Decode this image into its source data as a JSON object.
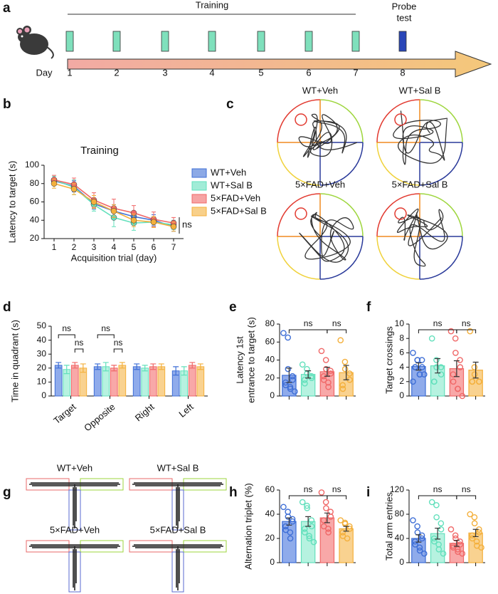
{
  "panel_a": {
    "label": "a",
    "title": "Training",
    "probe": [
      "Probe",
      "test"
    ],
    "day_label": "Day",
    "days": [
      1,
      2,
      3,
      4,
      5,
      6,
      7,
      8
    ]
  },
  "panel_c": {
    "label": "c",
    "titles": [
      "WT+Veh",
      "WT+Sal B",
      "5×FAD+Veh",
      "5×FAD+Sal B"
    ]
  },
  "panel_g": {
    "label": "g",
    "titles": [
      "WT+Veh",
      "WT+Sal B",
      "5×FAD+Veh",
      "5×FAD+Sal B"
    ]
  },
  "chart_data": [
    {
      "type": "line",
      "label": "b",
      "title": "Training",
      "xlabel": "Acquisition trial (day)",
      "ylabel": "Latency to target (s)",
      "x": [
        1,
        2,
        3,
        4,
        5,
        6,
        7
      ],
      "xlim": [
        0.5,
        7.5
      ],
      "xticks": [
        1,
        2,
        3,
        4,
        5,
        6,
        7
      ],
      "ylim": [
        20,
        100
      ],
      "yticks": [
        20,
        40,
        60,
        80,
        100
      ],
      "legend": "right",
      "annotation": "ns",
      "series": [
        {
          "name": "WT+Veh",
          "color": "#3f6fd6",
          "values": [
            83,
            77,
            58,
            50,
            44,
            40,
            33
          ],
          "errors": [
            5,
            6,
            6,
            7,
            6,
            6,
            5
          ]
        },
        {
          "name": "WT+Sal B",
          "color": "#63e0bc",
          "values": [
            84,
            76,
            57,
            43,
            37,
            38,
            35
          ],
          "errors": [
            4,
            8,
            7,
            10,
            8,
            6,
            5
          ]
        },
        {
          "name": "5×FAD+Veh",
          "color": "#f06868",
          "values": [
            84,
            79,
            62,
            53,
            48,
            41,
            37
          ],
          "errors": [
            5,
            7,
            8,
            10,
            8,
            8,
            6
          ]
        },
        {
          "name": "5×FAD+Sal B",
          "color": "#f4b03c",
          "values": [
            80,
            74,
            60,
            50,
            40,
            38,
            33
          ],
          "errors": [
            5,
            6,
            7,
            7,
            7,
            6,
            5
          ]
        }
      ]
    },
    {
      "type": "bar",
      "label": "d",
      "ylabel": "Time in quadrant (s)",
      "categories": [
        "Target",
        "Opposite",
        "Right",
        "Left"
      ],
      "ylim": [
        0,
        50
      ],
      "yticks": [
        0,
        10,
        20,
        30,
        40,
        50
      ],
      "annotations": [
        "ns",
        "ns",
        "ns",
        "ns"
      ],
      "series": [
        {
          "color": "#8fabeb",
          "edge_color": "#3f6fd6",
          "values": [
            22,
            21,
            21,
            18
          ],
          "errors": [
            2,
            2,
            2,
            3
          ]
        },
        {
          "color": "#b6f2e0",
          "edge_color": "#63e0bc",
          "values": [
            19,
            21,
            20,
            18
          ],
          "errors": [
            3,
            3,
            2,
            3
          ]
        },
        {
          "color": "#f8a8a8",
          "edge_color": "#f06868",
          "values": [
            22,
            20,
            21,
            22
          ],
          "errors": [
            2,
            2,
            2,
            2
          ]
        },
        {
          "color": "#f9d290",
          "edge_color": "#f4b03c",
          "values": [
            20,
            22,
            21,
            21
          ],
          "errors": [
            3,
            2,
            2,
            2
          ]
        }
      ]
    },
    {
      "type": "bar",
      "label": "e",
      "ylabel": [
        "Latency 1st",
        "entrance to target (s)"
      ],
      "categories": [
        null,
        null,
        null,
        null
      ],
      "values": [
        23,
        24,
        27,
        26
      ],
      "errors": [
        8,
        4,
        5,
        8
      ],
      "ylim": [
        0,
        80
      ],
      "yticks": [
        0,
        20,
        40,
        60,
        80
      ],
      "annotations": [
        "ns",
        "ns"
      ],
      "colors": [
        "#8fabeb",
        "#b6f2e0",
        "#f8a8a8",
        "#f9d290"
      ],
      "edge_colors": [
        "#3f6fd6",
        "#63e0bc",
        "#f06868",
        "#f4b03c"
      ],
      "points": [
        [
          70,
          65,
          30,
          22,
          18,
          15,
          12,
          10,
          8,
          5
        ],
        [
          35,
          30,
          25,
          22,
          20,
          18,
          14
        ],
        [
          50,
          40,
          30,
          28,
          25,
          22,
          18,
          15,
          10
        ],
        [
          62,
          38,
          30,
          25,
          18,
          12,
          8
        ]
      ]
    },
    {
      "type": "bar",
      "label": "f",
      "ylabel": "Target crossings",
      "categories": [
        null,
        null,
        null,
        null
      ],
      "values": [
        4.1,
        4.2,
        3.8,
        3.6
      ],
      "errors": [
        0.5,
        1,
        1.1,
        1.1
      ],
      "ylim": [
        0,
        10
      ],
      "yticks": [
        0,
        2,
        4,
        6,
        8,
        10
      ],
      "annotations": [
        "ns",
        "ns"
      ],
      "colors": [
        "#8fabeb",
        "#b6f2e0",
        "#f8a8a8",
        "#f9d290"
      ],
      "edge_colors": [
        "#3f6fd6",
        "#63e0bc",
        "#f06868",
        "#f4b03c"
      ],
      "points": [
        [
          6,
          5,
          5,
          5,
          4,
          4,
          4,
          3,
          3,
          3,
          2
        ],
        [
          8,
          5,
          4,
          4,
          3,
          2,
          2
        ],
        [
          9,
          8,
          6,
          5,
          4,
          3,
          2,
          1,
          1,
          0
        ],
        [
          9,
          4,
          3,
          2,
          2,
          2,
          2
        ]
      ]
    },
    {
      "type": "bar",
      "label": "h",
      "ylabel": "Alternation triplet (%)",
      "categories": [
        null,
        null,
        null,
        null
      ],
      "values": [
        34,
        34,
        37,
        28
      ],
      "errors": [
        3,
        4,
        4,
        2
      ],
      "ylim": [
        0,
        60
      ],
      "yticks": [
        0,
        20,
        40,
        60
      ],
      "annotations": [
        "ns",
        "ns"
      ],
      "colors": [
        "#8fabeb",
        "#b6f2e0",
        "#f8a8a8",
        "#f9d290"
      ],
      "edge_colors": [
        "#3f6fd6",
        "#63e0bc",
        "#f06868",
        "#f4b03c"
      ],
      "points": [
        [
          46,
          42,
          38,
          36,
          34,
          30,
          27,
          25,
          20
        ],
        [
          50,
          47,
          45,
          35,
          30,
          28,
          25,
          22,
          20,
          17
        ],
        [
          58,
          50,
          45,
          42,
          38,
          35,
          30,
          28,
          25
        ],
        [
          35,
          33,
          32,
          30,
          28,
          25,
          22,
          20
        ]
      ]
    },
    {
      "type": "bar",
      "label": "i",
      "ylabel": "Total arm entries",
      "categories": [
        null,
        null,
        null,
        null
      ],
      "values": [
        40,
        48,
        32,
        49
      ],
      "errors": [
        6,
        9,
        5,
        6
      ],
      "ylim": [
        0,
        120
      ],
      "yticks": [
        0,
        40,
        80,
        120
      ],
      "annotations": [
        "ns",
        "ns"
      ],
      "colors": [
        "#8fabeb",
        "#b6f2e0",
        "#f8a8a8",
        "#f9d290"
      ],
      "edge_colors": [
        "#3f6fd6",
        "#63e0bc",
        "#f06868",
        "#f4b03c"
      ],
      "points": [
        [
          70,
          60,
          50,
          45,
          40,
          35,
          30,
          25,
          20,
          15
        ],
        [
          100,
          95,
          75,
          65,
          55,
          40,
          35,
          30,
          22,
          15
        ],
        [
          55,
          45,
          40,
          35,
          30,
          28,
          25,
          22,
          18,
          15
        ],
        [
          80,
          75,
          65,
          55,
          50,
          45,
          40,
          35,
          28,
          25
        ]
      ]
    }
  ]
}
